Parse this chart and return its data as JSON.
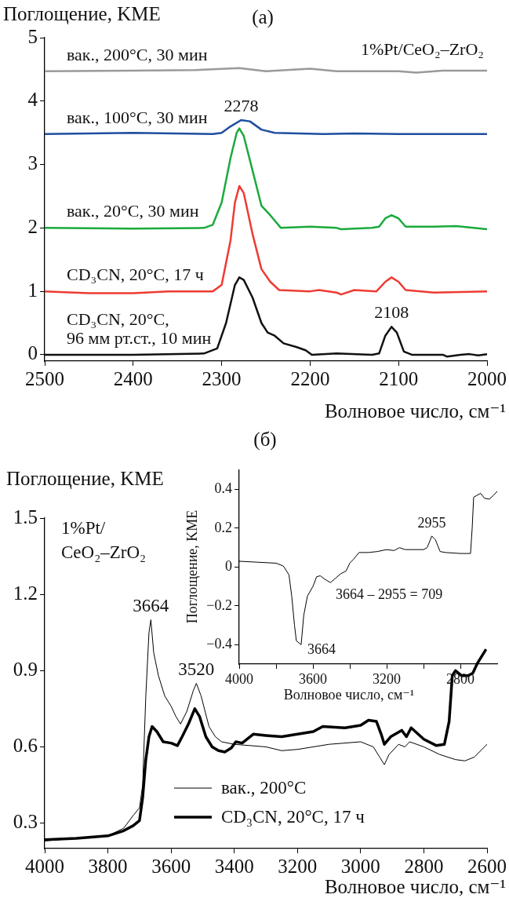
{
  "chart_data": [
    {
      "type": "line",
      "title": "(a)",
      "ylabel": "Поглощение, KME",
      "xlabel": "Волновое число, см⁻¹",
      "grid": false,
      "legend": false,
      "x": [
        2500,
        2450,
        2400,
        2350,
        2320,
        2305,
        2295,
        2285,
        2280,
        2275,
        2265,
        2255,
        2248,
        2240,
        2230,
        2215,
        2205,
        2198,
        2170,
        2130,
        2122,
        2115,
        2108,
        2102,
        2094,
        2085,
        2050,
        2045,
        2030,
        2020,
        2010,
        2000
      ],
      "xlim": [
        2500,
        2000
      ],
      "xticks": [
        2500,
        2400,
        2300,
        2200,
        2100,
        2000
      ],
      "ylim": [
        -0.1,
        5
      ],
      "yticks": [
        0,
        1,
        2,
        3,
        4,
        5
      ],
      "series": [
        {
          "name": "вак., 200°C, 30 мин",
          "color": "#9a9a9a",
          "x": [
            2500,
            2400,
            2330,
            2280,
            2250,
            2200,
            2170,
            2100,
            2080,
            2050,
            2000
          ],
          "values": [
            4.47,
            4.48,
            4.49,
            4.52,
            4.47,
            4.51,
            4.47,
            4.47,
            4.45,
            4.48,
            4.48
          ]
        },
        {
          "name": "вак., 100°C, 30 мин",
          "color": "#1f4e9e",
          "x": [
            2500,
            2400,
            2310,
            2300,
            2290,
            2278,
            2268,
            2255,
            2240,
            2185,
            2150,
            2100,
            2000
          ],
          "values": [
            3.48,
            3.5,
            3.48,
            3.5,
            3.6,
            3.7,
            3.68,
            3.55,
            3.5,
            3.48,
            3.49,
            3.48,
            3.48
          ]
        },
        {
          "name": "вак., 20°C, 30 мин",
          "color": "#1aaa3c",
          "x": [
            2500,
            2400,
            2320,
            2310,
            2300,
            2290,
            2283,
            2280,
            2275,
            2265,
            2255,
            2245,
            2233,
            2200,
            2170,
            2165,
            2130,
            2122,
            2115,
            2108,
            2100,
            2092,
            2060,
            2035,
            2000
          ],
          "values": [
            2.0,
            1.99,
            2.0,
            2.05,
            2.4,
            3.1,
            3.5,
            3.57,
            3.45,
            2.9,
            2.35,
            2.2,
            2.0,
            2.02,
            2.0,
            1.98,
            2.0,
            2.02,
            2.15,
            2.2,
            2.15,
            2.02,
            2.02,
            2.03,
            1.98
          ]
        },
        {
          "name": "CD₃CN, 20°C, 17 ч",
          "color": "#ee3b33",
          "x": [
            2500,
            2450,
            2400,
            2360,
            2310,
            2300,
            2290,
            2285,
            2280,
            2275,
            2265,
            2255,
            2245,
            2235,
            2200,
            2190,
            2170,
            2165,
            2150,
            2125,
            2115,
            2108,
            2100,
            2092,
            2060,
            2000
          ],
          "values": [
            1.0,
            0.97,
            0.97,
            1.0,
            1.0,
            1.1,
            1.8,
            2.4,
            2.66,
            2.55,
            1.9,
            1.35,
            1.15,
            1.02,
            1.0,
            1.02,
            0.98,
            0.95,
            1.02,
            1.0,
            1.15,
            1.22,
            1.15,
            1.02,
            0.98,
            1.0
          ]
        },
        {
          "name": "CD₃CN, 20°C,\n96 мм рт.ст., 10 мин",
          "color": "#111111",
          "values": [
            0,
            0,
            0,
            0.01,
            0.02,
            0.1,
            0.5,
            1.1,
            1.22,
            1.18,
            0.9,
            0.5,
            0.35,
            0.3,
            0.18,
            0.12,
            0.07,
            0,
            0.02,
            0,
            0.02,
            0.3,
            0.44,
            0.35,
            0.05,
            0,
            0,
            -0.03,
            0,
            0.01,
            -0.01,
            0.01
          ]
        }
      ],
      "annotations": [
        "1%Pt/CeO₂–ZrO₂",
        {
          "text": "2278",
          "x": 2278,
          "y": 3.7
        },
        {
          "text": "2108",
          "x": 2108,
          "y": 0.44
        }
      ]
    },
    {
      "type": "line",
      "title": "(б)",
      "ylabel": "Поглощение, KME",
      "xlabel": "Волновое число, см⁻¹",
      "grid": false,
      "legend": "bottom",
      "xlim": [
        4000,
        2600
      ],
      "xticks": [
        4000,
        3800,
        3600,
        3400,
        3200,
        3000,
        2800,
        2600
      ],
      "ylim": [
        0.2,
        1.5
      ],
      "yticks": [
        0.3,
        0.6,
        0.9,
        1.2,
        1.5
      ],
      "series": [
        {
          "name": "вак., 200°C",
          "color": "#000000",
          "x": [
            4000,
            3900,
            3800,
            3750,
            3720,
            3700,
            3690,
            3680,
            3670,
            3664,
            3655,
            3640,
            3620,
            3600,
            3585,
            3570,
            3550,
            3530,
            3520,
            3505,
            3480,
            3460,
            3440,
            3400,
            3300,
            3250,
            3200,
            3100,
            3000,
            2960,
            2940,
            2925,
            2910,
            2880,
            2860,
            2845,
            2800,
            2750,
            2700,
            2670,
            2640,
            2600
          ],
          "values": [
            0.23,
            0.24,
            0.25,
            0.28,
            0.33,
            0.36,
            0.45,
            0.8,
            1.05,
            1.1,
            0.97,
            0.88,
            0.8,
            0.76,
            0.72,
            0.69,
            0.74,
            0.82,
            0.85,
            0.8,
            0.68,
            0.64,
            0.62,
            0.61,
            0.6,
            0.585,
            0.59,
            0.61,
            0.62,
            0.6,
            0.56,
            0.53,
            0.57,
            0.61,
            0.6,
            0.62,
            0.6,
            0.57,
            0.55,
            0.545,
            0.56,
            0.61
          ]
        },
        {
          "name": "CD₃CN, 20°C, 17 ч",
          "color": "#000000",
          "x": [
            4000,
            3900,
            3800,
            3750,
            3720,
            3700,
            3690,
            3680,
            3670,
            3660,
            3645,
            3625,
            3600,
            3580,
            3565,
            3545,
            3525,
            3510,
            3490,
            3470,
            3450,
            3430,
            3410,
            3395,
            3375,
            3340,
            3300,
            3250,
            3200,
            3150,
            3120,
            3050,
            3000,
            2975,
            2950,
            2935,
            2925,
            2905,
            2870,
            2855,
            2840,
            2800,
            2760,
            2735,
            2720,
            2710,
            2700,
            2680,
            2660,
            2645,
            2630,
            2610,
            2605
          ],
          "values": [
            0.235,
            0.24,
            0.25,
            0.27,
            0.29,
            0.31,
            0.4,
            0.55,
            0.64,
            0.68,
            0.66,
            0.62,
            0.615,
            0.605,
            0.64,
            0.69,
            0.75,
            0.72,
            0.64,
            0.6,
            0.585,
            0.58,
            0.595,
            0.62,
            0.615,
            0.65,
            0.645,
            0.64,
            0.65,
            0.66,
            0.68,
            0.675,
            0.685,
            0.705,
            0.7,
            0.65,
            0.61,
            0.64,
            0.665,
            0.64,
            0.675,
            0.63,
            0.605,
            0.61,
            0.7,
            0.88,
            0.9,
            0.88,
            0.88,
            0.89,
            0.93,
            0.97,
            0.98
          ]
        }
      ],
      "annotations": [
        "1%Pt/\nCeO₂–ZrO₂",
        {
          "text": "3664",
          "x": 3664,
          "y": 1.1
        },
        {
          "text": "3520",
          "x": 3520,
          "y": 0.85
        }
      ]
    },
    {
      "type": "line",
      "ylabel": "Поглощение, KME",
      "xlabel": "Волновое число, см⁻¹",
      "grid": false,
      "legend": false,
      "xlim": [
        4000,
        2600
      ],
      "xticks": [
        4000,
        {
          "value": 3800,
          "label": null
        },
        3600,
        {
          "value": 3400,
          "label": null
        },
        3200,
        {
          "value": 3000,
          "label": null
        },
        2800
      ],
      "ylim": [
        -0.5,
        0.5
      ],
      "yticks": [
        -0.4,
        -0.2,
        0,
        0.2,
        0.4
      ],
      "series": [
        {
          "color": "#000000",
          "x": [
            4000,
            3900,
            3800,
            3760,
            3730,
            3715,
            3700,
            3690,
            3664,
            3650,
            3630,
            3600,
            3580,
            3560,
            3540,
            3505,
            3480,
            3450,
            3420,
            3400,
            3380,
            3350,
            3300,
            3250,
            3200,
            3160,
            3130,
            3100,
            3000,
            2980,
            2955,
            2935,
            2910,
            2880,
            2800,
            2745,
            2736,
            2728,
            2690,
            2670,
            2643,
            2620,
            2600
          ],
          "values": [
            0.03,
            0.025,
            0.02,
            0.005,
            -0.04,
            -0.15,
            -0.3,
            -0.38,
            -0.4,
            -0.25,
            -0.15,
            -0.1,
            -0.05,
            -0.045,
            -0.06,
            -0.08,
            -0.06,
            -0.035,
            -0.02,
            0.02,
            0.04,
            0.075,
            0.075,
            0.08,
            0.09,
            0.085,
            0.1,
            0.09,
            0.09,
            0.1,
            0.16,
            0.14,
            0.08,
            0.075,
            0.07,
            0.07,
            0.2,
            0.36,
            0.38,
            0.355,
            0.35,
            0.37,
            0.39
          ]
        }
      ],
      "annotations": [
        "3664 – 2955 = 709",
        {
          "text": "3664",
          "x": 3664,
          "y": -0.4
        },
        {
          "text": "2955",
          "x": 2955,
          "y": 0.16
        }
      ]
    }
  ]
}
